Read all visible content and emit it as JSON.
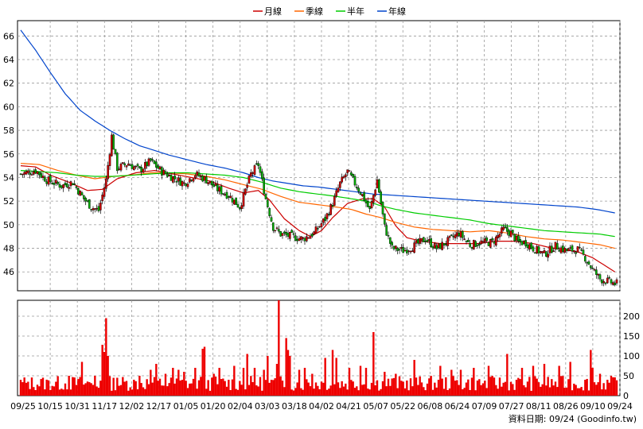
{
  "chart_data": {
    "type": "candlestick",
    "legend": [
      {
        "name": "月線",
        "color": "#cc0000"
      },
      {
        "name": "季線",
        "color": "#ff6600"
      },
      {
        "name": "半年",
        "color": "#00cc00"
      },
      {
        "name": "年線",
        "color": "#0044cc"
      }
    ],
    "price_axis": {
      "ticks": [
        46,
        48,
        50,
        52,
        54,
        56,
        58,
        60,
        62,
        64,
        66
      ],
      "range": [
        44.4,
        67.3
      ]
    },
    "volume_axis": {
      "ticks": [
        0,
        50,
        100,
        150,
        200
      ],
      "range": [
        0,
        240
      ]
    },
    "x_labels": [
      "09/25",
      "10/15",
      "10/31",
      "11/17",
      "12/02",
      "12/17",
      "01/05",
      "01/20",
      "02/04",
      "03/03",
      "03/18",
      "04/02",
      "04/21",
      "05/07",
      "05/22",
      "06/08",
      "06/24",
      "07/09",
      "07/27",
      "08/11",
      "08/26",
      "09/10",
      "09/24"
    ],
    "anchors": [
      [
        0,
        54.3
      ],
      [
        8,
        54.6
      ],
      [
        14,
        53.8
      ],
      [
        22,
        53.3
      ],
      [
        28,
        53.6
      ],
      [
        34,
        52.2
      ],
      [
        38,
        51.5
      ],
      [
        42,
        51.2
      ],
      [
        46,
        53.8
      ],
      [
        49,
        57.5
      ],
      [
        52,
        54.8
      ],
      [
        58,
        55.2
      ],
      [
        64,
        54.6
      ],
      [
        70,
        55.4
      ],
      [
        76,
        54.5
      ],
      [
        82,
        54.0
      ],
      [
        88,
        53.5
      ],
      [
        94,
        54.3
      ],
      [
        100,
        53.8
      ],
      [
        106,
        53.0
      ],
      [
        112,
        52.5
      ],
      [
        118,
        51.5
      ],
      [
        124,
        54.3
      ],
      [
        128,
        55.1
      ],
      [
        132,
        52.2
      ],
      [
        136,
        49.8
      ],
      [
        140,
        49.2
      ],
      [
        146,
        49.0
      ],
      [
        152,
        48.8
      ],
      [
        158,
        49.3
      ],
      [
        164,
        50.5
      ],
      [
        168,
        51.8
      ],
      [
        172,
        53.5
      ],
      [
        176,
        54.5
      ],
      [
        180,
        53.5
      ],
      [
        184,
        52.5
      ],
      [
        188,
        51.2
      ],
      [
        192,
        53.8
      ],
      [
        196,
        49.8
      ],
      [
        200,
        48.0
      ],
      [
        206,
        47.8
      ],
      [
        212,
        48.2
      ],
      [
        218,
        48.8
      ],
      [
        224,
        48.0
      ],
      [
        230,
        48.6
      ],
      [
        236,
        49.3
      ],
      [
        242,
        48.3
      ],
      [
        248,
        48.5
      ],
      [
        254,
        48.5
      ],
      [
        260,
        49.6
      ],
      [
        264,
        49.3
      ],
      [
        268,
        48.5
      ],
      [
        272,
        48.5
      ],
      [
        276,
        48.0
      ],
      [
        282,
        47.5
      ],
      [
        288,
        48.2
      ],
      [
        294,
        47.8
      ],
      [
        300,
        47.9
      ],
      [
        304,
        47.2
      ],
      [
        308,
        46.2
      ],
      [
        312,
        45.4
      ],
      [
        316,
        45.2
      ],
      [
        320,
        45.0
      ]
    ],
    "ma_month": [
      [
        0,
        55.0
      ],
      [
        8,
        54.9
      ],
      [
        16,
        54.2
      ],
      [
        26,
        53.6
      ],
      [
        36,
        52.9
      ],
      [
        44,
        53.0
      ],
      [
        52,
        53.9
      ],
      [
        62,
        54.4
      ],
      [
        72,
        54.6
      ],
      [
        82,
        54.3
      ],
      [
        92,
        54.0
      ],
      [
        102,
        53.7
      ],
      [
        112,
        53.1
      ],
      [
        120,
        52.7
      ],
      [
        128,
        52.9
      ],
      [
        134,
        52.1
      ],
      [
        142,
        50.5
      ],
      [
        150,
        49.5
      ],
      [
        156,
        49.0
      ],
      [
        162,
        49.5
      ],
      [
        168,
        50.6
      ],
      [
        176,
        51.8
      ],
      [
        184,
        52.2
      ],
      [
        190,
        52.2
      ],
      [
        196,
        51.5
      ],
      [
        202,
        49.9
      ],
      [
        208,
        48.9
      ],
      [
        216,
        48.6
      ],
      [
        226,
        48.4
      ],
      [
        236,
        48.4
      ],
      [
        246,
        48.4
      ],
      [
        256,
        48.6
      ],
      [
        266,
        48.6
      ],
      [
        276,
        48.4
      ],
      [
        284,
        48.1
      ],
      [
        292,
        47.9
      ],
      [
        300,
        47.7
      ],
      [
        308,
        47.2
      ],
      [
        314,
        46.6
      ],
      [
        320,
        46.0
      ]
    ],
    "ma_quarter": [
      [
        0,
        55.2
      ],
      [
        10,
        55.1
      ],
      [
        20,
        54.6
      ],
      [
        30,
        54.2
      ],
      [
        40,
        53.9
      ],
      [
        50,
        54.1
      ],
      [
        60,
        54.2
      ],
      [
        70,
        54.4
      ],
      [
        80,
        54.4
      ],
      [
        90,
        54.3
      ],
      [
        100,
        54.1
      ],
      [
        110,
        53.8
      ],
      [
        120,
        53.4
      ],
      [
        130,
        53.0
      ],
      [
        140,
        52.4
      ],
      [
        150,
        51.9
      ],
      [
        160,
        51.7
      ],
      [
        170,
        51.5
      ],
      [
        178,
        51.3
      ],
      [
        186,
        50.9
      ],
      [
        194,
        50.6
      ],
      [
        202,
        50.2
      ],
      [
        212,
        49.8
      ],
      [
        222,
        49.6
      ],
      [
        232,
        49.5
      ],
      [
        242,
        49.4
      ],
      [
        252,
        49.5
      ],
      [
        262,
        49.3
      ],
      [
        272,
        49.0
      ],
      [
        282,
        48.8
      ],
      [
        292,
        48.7
      ],
      [
        302,
        48.5
      ],
      [
        312,
        48.3
      ],
      [
        320,
        48.0
      ]
    ],
    "ma_half": [
      [
        0,
        54.6
      ],
      [
        10,
        54.5
      ],
      [
        20,
        54.4
      ],
      [
        30,
        54.2
      ],
      [
        40,
        54.1
      ],
      [
        50,
        54.1
      ],
      [
        60,
        54.2
      ],
      [
        70,
        54.3
      ],
      [
        80,
        54.4
      ],
      [
        90,
        54.4
      ],
      [
        100,
        54.3
      ],
      [
        110,
        54.2
      ],
      [
        120,
        54.0
      ],
      [
        130,
        53.6
      ],
      [
        140,
        53.1
      ],
      [
        150,
        52.8
      ],
      [
        160,
        52.6
      ],
      [
        170,
        52.4
      ],
      [
        178,
        52.2
      ],
      [
        186,
        52.0
      ],
      [
        194,
        51.6
      ],
      [
        202,
        51.3
      ],
      [
        212,
        51.0
      ],
      [
        222,
        50.8
      ],
      [
        232,
        50.6
      ],
      [
        242,
        50.4
      ],
      [
        252,
        50.1
      ],
      [
        262,
        49.9
      ],
      [
        272,
        49.7
      ],
      [
        282,
        49.5
      ],
      [
        292,
        49.4
      ],
      [
        302,
        49.3
      ],
      [
        312,
        49.2
      ],
      [
        320,
        49.0
      ]
    ],
    "ma_year": [
      [
        0,
        66.5
      ],
      [
        8,
        64.8
      ],
      [
        16,
        62.9
      ],
      [
        24,
        61.1
      ],
      [
        32,
        59.7
      ],
      [
        40,
        58.8
      ],
      [
        48,
        58.0
      ],
      [
        56,
        57.3
      ],
      [
        64,
        56.7
      ],
      [
        72,
        56.3
      ],
      [
        80,
        55.9
      ],
      [
        90,
        55.5
      ],
      [
        100,
        55.1
      ],
      [
        110,
        54.8
      ],
      [
        120,
        54.4
      ],
      [
        128,
        54.0
      ],
      [
        136,
        53.7
      ],
      [
        144,
        53.5
      ],
      [
        152,
        53.3
      ],
      [
        160,
        53.2
      ],
      [
        170,
        53.0
      ],
      [
        180,
        52.8
      ],
      [
        190,
        52.6
      ],
      [
        200,
        52.5
      ],
      [
        210,
        52.4
      ],
      [
        220,
        52.3
      ],
      [
        230,
        52.2
      ],
      [
        240,
        52.1
      ],
      [
        250,
        52.0
      ],
      [
        260,
        51.9
      ],
      [
        270,
        51.8
      ],
      [
        280,
        51.7
      ],
      [
        290,
        51.6
      ],
      [
        300,
        51.5
      ],
      [
        310,
        51.3
      ],
      [
        320,
        51.0
      ]
    ],
    "volume_spikes": [
      [
        4,
        35
      ],
      [
        26,
        50
      ],
      [
        33,
        85
      ],
      [
        40,
        50
      ],
      [
        44,
        128
      ],
      [
        45,
        110
      ],
      [
        46,
        195
      ],
      [
        47,
        100
      ],
      [
        52,
        45
      ],
      [
        64,
        50
      ],
      [
        70,
        65
      ],
      [
        73,
        80
      ],
      [
        78,
        55
      ],
      [
        82,
        70
      ],
      [
        85,
        65
      ],
      [
        88,
        60
      ],
      [
        94,
        70
      ],
      [
        98,
        118
      ],
      [
        99,
        123
      ],
      [
        104,
        55
      ],
      [
        107,
        70
      ],
      [
        115,
        75
      ],
      [
        120,
        70
      ],
      [
        122,
        105
      ],
      [
        126,
        70
      ],
      [
        131,
        65
      ],
      [
        133,
        100
      ],
      [
        138,
        80
      ],
      [
        139,
        240
      ],
      [
        143,
        145
      ],
      [
        144,
        115
      ],
      [
        145,
        100
      ],
      [
        150,
        65
      ],
      [
        153,
        70
      ],
      [
        157,
        55
      ],
      [
        164,
        95
      ],
      [
        168,
        115
      ],
      [
        170,
        95
      ],
      [
        177,
        70
      ],
      [
        183,
        75
      ],
      [
        186,
        70
      ],
      [
        190,
        160
      ],
      [
        196,
        60
      ],
      [
        202,
        55
      ],
      [
        212,
        90
      ],
      [
        226,
        75
      ],
      [
        232,
        65
      ],
      [
        237,
        65
      ],
      [
        244,
        70
      ],
      [
        252,
        75
      ],
      [
        262,
        105
      ],
      [
        270,
        70
      ],
      [
        276,
        75
      ],
      [
        282,
        80
      ],
      [
        290,
        75
      ],
      [
        296,
        85
      ],
      [
        307,
        115
      ],
      [
        308,
        70
      ],
      [
        312,
        55
      ]
    ],
    "n_days": 322,
    "price_seed": 7,
    "volume_seed": 13
  },
  "source_text": "資料日期: 09/24  (Goodinfo.tw)"
}
